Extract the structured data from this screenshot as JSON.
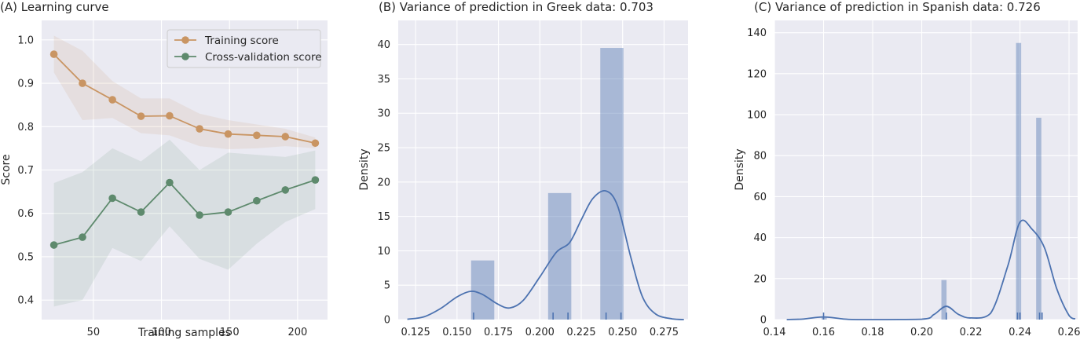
{
  "chart_data": [
    {
      "type": "line",
      "title": "(A) Learning curve",
      "xlabel": "Training samples",
      "ylabel": "Score",
      "xlim": [
        12,
        222
      ],
      "ylim": [
        0.355,
        1.045
      ],
      "xticks": [
        50,
        100,
        150,
        200
      ],
      "yticks": [
        0.4,
        0.5,
        0.6,
        0.7,
        0.8,
        0.9,
        1.0
      ],
      "legend_position": "top-right",
      "grid": true,
      "x": [
        21,
        42,
        64,
        85,
        106,
        128,
        149,
        170,
        191,
        213
      ],
      "series": [
        {
          "name": "Training score",
          "color": "#c99563",
          "values": [
            0.967,
            0.9,
            0.862,
            0.824,
            0.825,
            0.795,
            0.783,
            0.78,
            0.777,
            0.762
          ],
          "band_upper": [
            1.01,
            0.975,
            0.905,
            0.865,
            0.865,
            0.83,
            0.815,
            0.805,
            0.795,
            0.775
          ],
          "band_lower": [
            0.925,
            0.815,
            0.82,
            0.785,
            0.78,
            0.755,
            0.748,
            0.75,
            0.755,
            0.75
          ]
        },
        {
          "name": "Cross-validation score",
          "color": "#5e8a6d",
          "values": [
            0.527,
            0.545,
            0.635,
            0.603,
            0.671,
            0.596,
            0.603,
            0.629,
            0.654,
            0.677
          ],
          "band_upper": [
            0.67,
            0.695,
            0.75,
            0.72,
            0.77,
            0.7,
            0.74,
            0.735,
            0.73,
            0.745
          ],
          "band_lower": [
            0.385,
            0.4,
            0.52,
            0.49,
            0.57,
            0.495,
            0.47,
            0.53,
            0.58,
            0.61
          ]
        }
      ]
    },
    {
      "type": "histogram",
      "title": "(B) Variance of prediction in Greek data: 0.703",
      "xlabel": "",
      "ylabel": "Density",
      "xlim": [
        0.1145,
        0.2895
      ],
      "ylim": [
        0,
        43.5
      ],
      "xticks": [
        "0.125",
        "0.150",
        "0.175",
        "0.200",
        "0.225",
        "0.250",
        "0.275"
      ],
      "xtick_values": [
        0.125,
        0.15,
        0.175,
        0.2,
        0.225,
        0.25,
        0.275
      ],
      "yticks": [
        0,
        5,
        10,
        15,
        20,
        25,
        30,
        35,
        40
      ],
      "grid": true,
      "color": "#4c72b0",
      "bins": [
        {
          "x0": 0.1585,
          "x1": 0.1725,
          "density": 8.6
        },
        {
          "x0": 0.205,
          "x1": 0.219,
          "density": 18.4
        },
        {
          "x0": 0.2365,
          "x1": 0.2505,
          "density": 39.5
        }
      ],
      "kde": [
        [
          0.12,
          0.05
        ],
        [
          0.13,
          0.4
        ],
        [
          0.14,
          1.6
        ],
        [
          0.15,
          3.3
        ],
        [
          0.158,
          4.1
        ],
        [
          0.165,
          3.7
        ],
        [
          0.175,
          2.2
        ],
        [
          0.182,
          1.7
        ],
        [
          0.19,
          2.8
        ],
        [
          0.2,
          6.2
        ],
        [
          0.21,
          9.8
        ],
        [
          0.218,
          11.2
        ],
        [
          0.225,
          14.5
        ],
        [
          0.232,
          17.6
        ],
        [
          0.24,
          18.7
        ],
        [
          0.247,
          16.5
        ],
        [
          0.255,
          9.0
        ],
        [
          0.262,
          3.3
        ],
        [
          0.27,
          0.8
        ],
        [
          0.28,
          0.1
        ],
        [
          0.287,
          0.0
        ]
      ],
      "rug": [
        0.16,
        0.208,
        0.217,
        0.24,
        0.249
      ]
    },
    {
      "type": "histogram",
      "title": "(C) Variance of prediction in Spanish data: 0.726",
      "xlabel": "",
      "ylabel": "Density",
      "xlim": [
        0.14,
        0.2635
      ],
      "ylim": [
        0,
        146
      ],
      "xticks": [
        "0.14",
        "0.16",
        "0.18",
        "0.20",
        "0.22",
        "0.24",
        "0.26"
      ],
      "xtick_values": [
        0.14,
        0.16,
        0.18,
        0.2,
        0.22,
        0.24,
        0.26
      ],
      "yticks": [
        0,
        20,
        40,
        60,
        80,
        100,
        120,
        140
      ],
      "grid": true,
      "color": "#4c72b0",
      "bins": [
        {
          "x0": 0.1592,
          "x1": 0.1613,
          "density": 1.5
        },
        {
          "x0": 0.208,
          "x1": 0.2101,
          "density": 19.3
        },
        {
          "x0": 0.2384,
          "x1": 0.2405,
          "density": 135
        },
        {
          "x0": 0.2466,
          "x1": 0.2487,
          "density": 98.5
        }
      ],
      "kde": [
        [
          0.145,
          0
        ],
        [
          0.152,
          0.3
        ],
        [
          0.16,
          1.3
        ],
        [
          0.168,
          0.3
        ],
        [
          0.175,
          0
        ],
        [
          0.2,
          0.2
        ],
        [
          0.205,
          2.5
        ],
        [
          0.21,
          6.5
        ],
        [
          0.215,
          2.5
        ],
        [
          0.22,
          0.8
        ],
        [
          0.228,
          3
        ],
        [
          0.235,
          26
        ],
        [
          0.24,
          47.5
        ],
        [
          0.245,
          44
        ],
        [
          0.25,
          35
        ],
        [
          0.255,
          15
        ],
        [
          0.26,
          2
        ],
        [
          0.2625,
          0.3
        ]
      ],
      "rug": [
        0.16,
        0.21,
        0.239,
        0.24,
        0.248,
        0.249
      ]
    }
  ]
}
